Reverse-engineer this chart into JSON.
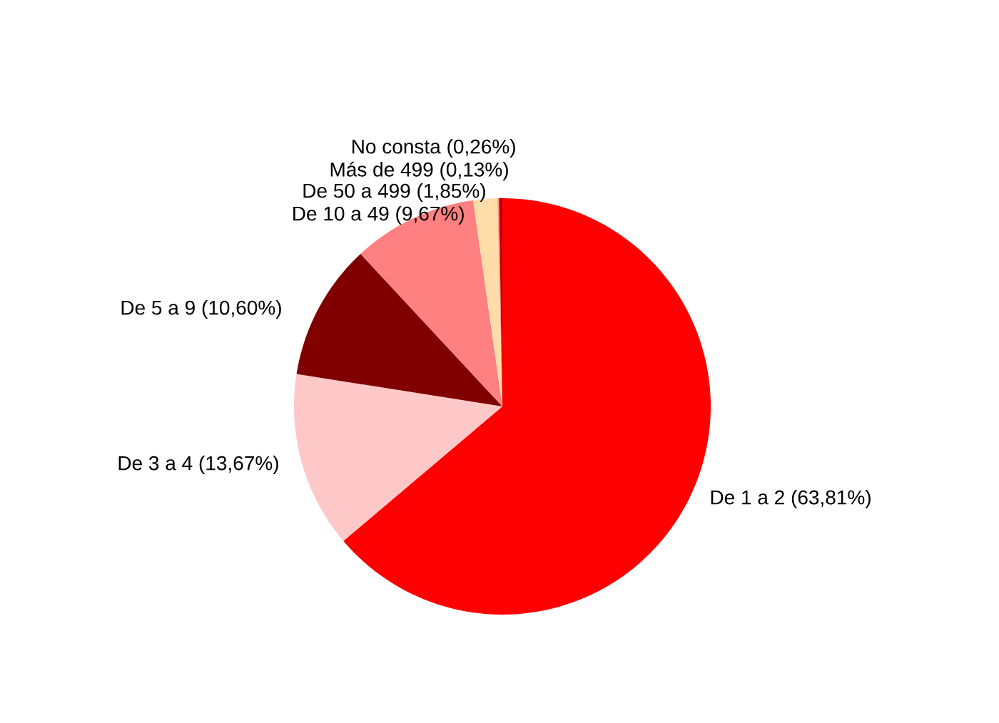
{
  "chart_data": {
    "type": "pie",
    "categories": [
      "De 1 a 2",
      "De 3 a 4",
      "De 5 a 9",
      "De 10 a 49",
      "De 50 a 499",
      "Más de 499",
      "No consta"
    ],
    "values": [
      63.81,
      13.67,
      10.6,
      9.67,
      1.85,
      0.13,
      0.26
    ],
    "value_labels": [
      "(63,81%)",
      "(13,67%)",
      "(10,60%)",
      "(9,67%)",
      "(1,85%)",
      "(0,13%)",
      "(0,26%)"
    ],
    "colors": [
      "#ff0000",
      "#ffc8c8",
      "#800000",
      "#ff8080",
      "#ffdca8",
      "#ffa0a0",
      "#c00000"
    ]
  }
}
